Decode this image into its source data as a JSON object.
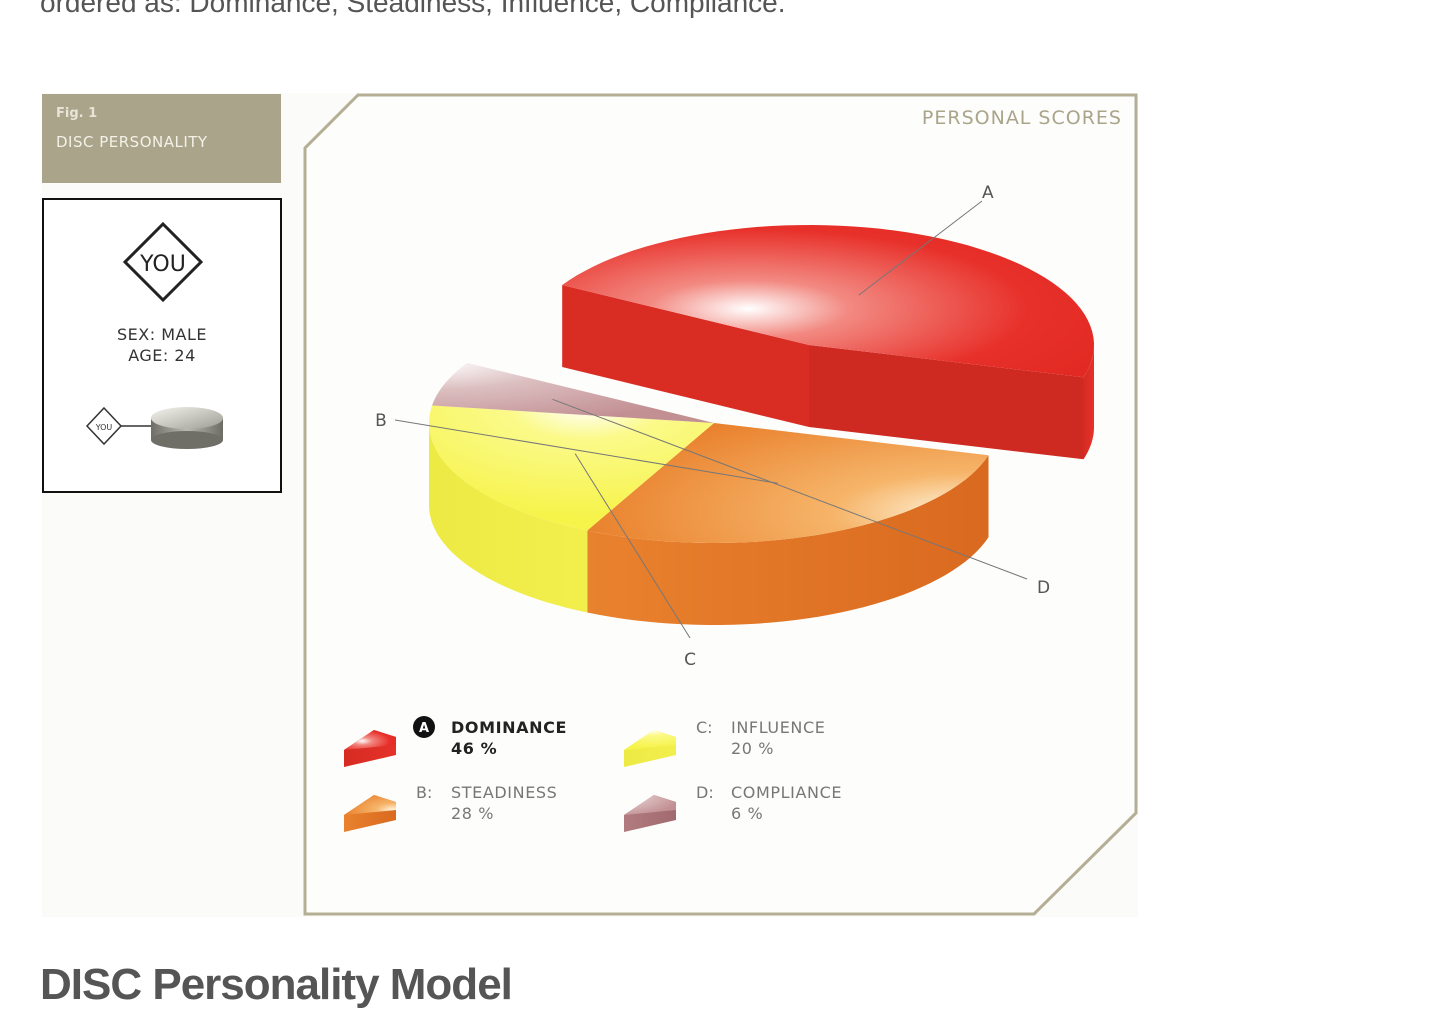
{
  "page": {
    "intro_text": "ordered as: Dominance, Steadiness, Influence, Compliance.",
    "heading": "DISC Personality Model"
  },
  "figure": {
    "fig_number": "Fig. 1",
    "fig_title": "DISC PERSONALITY",
    "panel_title": "PERSONAL SCORES"
  },
  "profile": {
    "badge": "YOU",
    "small_badge": "YOU",
    "sex": "SEX: MALE",
    "age": "AGE: 24"
  },
  "colors": {
    "frame": "#b4ae94",
    "header_bg": "#aaa48a",
    "dominance": "#e8302a",
    "steadiness": "#ec8a3a",
    "influence": "#f5f24e",
    "compliance": "#b17b80"
  },
  "chart_data": {
    "type": "pie",
    "title": "PERSONAL SCORES",
    "categories": [
      "DOMINANCE",
      "STEADINESS",
      "INFLUENCE",
      "COMPLIANCE"
    ],
    "values": [
      46,
      28,
      20,
      6
    ],
    "slices": [
      {
        "letter": "A",
        "prefix": "A",
        "name": "DOMINANCE",
        "value": 46,
        "value_label": "46 %",
        "color": "#e8302a",
        "exploded": true,
        "highlighted": true
      },
      {
        "letter": "B",
        "prefix": "B:",
        "name": "STEADINESS",
        "value": 28,
        "value_label": "28 %",
        "color": "#ec8a3a",
        "exploded": false,
        "highlighted": false
      },
      {
        "letter": "C",
        "prefix": "C:",
        "name": "INFLUENCE",
        "value": 20,
        "value_label": "20 %",
        "color": "#f5f24e",
        "exploded": false,
        "highlighted": false
      },
      {
        "letter": "D",
        "prefix": "D:",
        "name": "COMPLIANCE",
        "value": 6,
        "value_label": "6 %",
        "color": "#b17b80",
        "exploded": false,
        "highlighted": false
      }
    ],
    "legend_position": "bottom",
    "three_d": true
  }
}
